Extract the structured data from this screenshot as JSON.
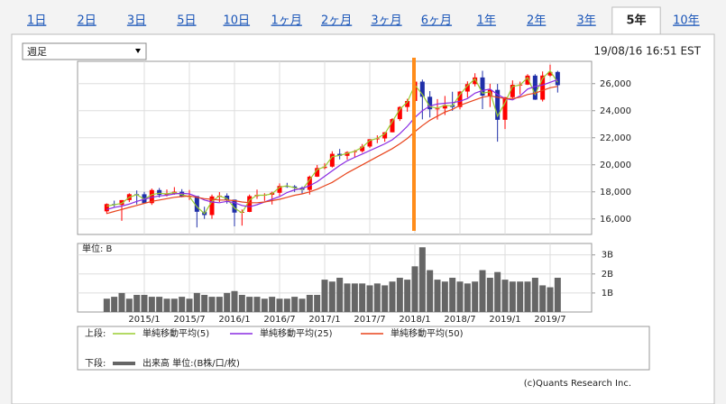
{
  "tabs": [
    "1日",
    "2日",
    "3日",
    "5日",
    "10日",
    "1ヶ月",
    "2ヶ月",
    "3ヶ月",
    "6ヶ月",
    "1年",
    "2年",
    "3年",
    "5年",
    "10年"
  ],
  "selected_tab": 12,
  "dropdown": "週足",
  "timestamp": "19/08/16 16:51 EST",
  "credit": "(c)Quants Research Inc.",
  "chart_data": [
    {
      "type": "candlestick",
      "legend_label": "上段:",
      "categories": [
        null,
        null,
        null,
        null,
        null,
        "2015/1",
        null,
        null,
        null,
        null,
        null,
        "2015/7",
        null,
        null,
        null,
        null,
        null,
        "2016/1",
        null,
        null,
        null,
        null,
        null,
        "2016/7",
        null,
        null,
        null,
        null,
        null,
        "2017/1",
        null,
        null,
        null,
        null,
        null,
        "2017/7",
        null,
        null,
        null,
        null,
        null,
        "2018/1",
        null,
        null,
        null,
        null,
        null,
        "2018/7",
        null,
        null,
        null,
        null,
        null,
        "2019/1",
        null,
        null,
        null,
        null,
        null,
        "2019/7",
        null
      ],
      "open": [
        16560,
        17098,
        17040,
        17390,
        17828,
        17823,
        17165,
        18133,
        17776,
        17841,
        18011,
        17620,
        17690,
        16528,
        16285,
        17663,
        17720,
        17425,
        16466,
        16517,
        17685,
        17774,
        17787,
        17930,
        18432,
        18401,
        18308,
        18142,
        19124,
        19763,
        19864,
        20812,
        20663,
        20940,
        21009,
        21350,
        21891,
        21948,
        22405,
        23377,
        24272,
        24719,
        26149,
        25029,
        24103,
        24163,
        24416,
        24271,
        25415,
        25965,
        26458,
        25116,
        25539,
        23327,
        24999,
        25916,
        25929,
        26593,
        24815,
        26600,
        26864
      ],
      "high": [
        17150,
        17350,
        17395,
        17895,
        18103,
        18000,
        18244,
        18288,
        18175,
        18351,
        18200,
        18138,
        17700,
        16900,
        17800,
        17980,
        17890,
        17425,
        16700,
        17800,
        18168,
        17900,
        18016,
        18622,
        18668,
        18500,
        18400,
        19200,
        19987,
        20125,
        21000,
        21170,
        21000,
        21100,
        21535,
        21900,
        22180,
        22420,
        23450,
        24330,
        24880,
        26620,
        26300,
        25450,
        24860,
        25090,
        25400,
        25460,
        26170,
        26770,
        26950,
        25990,
        25980,
        25000,
        26240,
        26150,
        26700,
        26700,
        26900,
        27400,
        26950
      ],
      "low": [
        16370,
        16900,
        15855,
        17250,
        17070,
        17135,
        17037,
        17585,
        17660,
        17790,
        17600,
        17400,
        15370,
        16000,
        16010,
        17250,
        17130,
        15450,
        15503,
        16500,
        17480,
        17330,
        17063,
        17700,
        18300,
        17990,
        17880,
        17800,
        19100,
        19670,
        19800,
        20400,
        20380,
        20550,
        20900,
        21250,
        21600,
        21700,
        22400,
        23240,
        23920,
        24700,
        23360,
        23500,
        23340,
        23680,
        23990,
        24100,
        24970,
        25800,
        24120,
        24270,
        21710,
        22640,
        24880,
        25200,
        25900,
        24800,
        24680,
        26500,
        25340
      ],
      "close": [
        17098,
        17043,
        17390,
        17828,
        17823,
        17165,
        18133,
        17776,
        17841,
        18011,
        17620,
        17690,
        16528,
        16285,
        17663,
        17720,
        17425,
        16466,
        16517,
        17685,
        17774,
        17787,
        17930,
        18432,
        18401,
        18308,
        18142,
        19124,
        19763,
        19864,
        20812,
        20663,
        20940,
        21009,
        21350,
        21891,
        21948,
        22405,
        23377,
        24272,
        24719,
        26149,
        25029,
        24103,
        24163,
        24416,
        24271,
        25415,
        25965,
        26458,
        25116,
        25539,
        23327,
        24999,
        25916,
        25929,
        26593,
        24815,
        26600,
        26864,
        25886
      ],
      "up_color": "#ff0000",
      "down_color": "#1f2fa8",
      "series": [
        {
          "name": "単純移動平均(5)",
          "color": "#9acd32",
          "values": [
            16950,
            17050,
            17150,
            17600,
            17800,
            17450,
            17800,
            17900,
            17850,
            17950,
            17800,
            17650,
            16900,
            16400,
            17300,
            17700,
            17500,
            16800,
            16450,
            17400,
            17750,
            17750,
            17850,
            18350,
            18450,
            18300,
            18150,
            18900,
            19650,
            19850,
            20600,
            20700,
            20850,
            21000,
            21300,
            21800,
            21950,
            22300,
            23200,
            24100,
            24650,
            25900,
            25200,
            24300,
            24200,
            24400,
            24350,
            25200,
            25850,
            26350,
            25300,
            25400,
            23600,
            24600,
            25800,
            25900,
            26450,
            25200,
            26400,
            26950,
            26100
          ]
        },
        {
          "name": "単純移動平均(25)",
          "color": "#8a2be2",
          "values": [
            16700,
            16850,
            16950,
            17100,
            17300,
            17450,
            17600,
            17700,
            17750,
            17850,
            17900,
            17850,
            17650,
            17400,
            17250,
            17200,
            17300,
            17200,
            17000,
            16900,
            17050,
            17250,
            17450,
            17650,
            17950,
            18150,
            18250,
            18450,
            18750,
            19150,
            19550,
            19950,
            20300,
            20550,
            20800,
            21050,
            21300,
            21550,
            21850,
            22300,
            22850,
            23500,
            24000,
            24350,
            24500,
            24550,
            24600,
            24700,
            24900,
            25300,
            25500,
            25600,
            25200,
            24900,
            24800,
            25100,
            25600,
            25800,
            25900,
            26100,
            26300
          ]
        },
        {
          "name": "単純移動平均(50)",
          "color": "#e8441c",
          "values": [
            16400,
            16550,
            16700,
            16850,
            17000,
            17150,
            17300,
            17400,
            17500,
            17600,
            17650,
            17700,
            17600,
            17500,
            17450,
            17400,
            17400,
            17350,
            17250,
            17200,
            17200,
            17250,
            17350,
            17450,
            17600,
            17750,
            17850,
            18000,
            18200,
            18450,
            18700,
            19050,
            19400,
            19700,
            20000,
            20300,
            20600,
            20900,
            21200,
            21550,
            21950,
            22450,
            22900,
            23300,
            23600,
            23900,
            24100,
            24400,
            24600,
            24800,
            25000,
            25100,
            25000,
            24900,
            24900,
            25000,
            25200,
            25300,
            25500,
            25700,
            25800
          ]
        }
      ],
      "ylim": [
        14850,
        27650
      ],
      "yticks": [
        {
          "value": 16000,
          "label": "16,000"
        },
        {
          "value": 18000,
          "label": "18,000"
        },
        {
          "value": 20000,
          "label": "20,000"
        },
        {
          "value": 22000,
          "label": "22,000"
        },
        {
          "value": 24000,
          "label": "24,000"
        },
        {
          "value": 26000,
          "label": "26,000"
        }
      ],
      "grid": true
    },
    {
      "type": "bar",
      "legend_label": "下段:",
      "unit_label": "単位: B",
      "name": "出来高 単位:(B株/口/枚)",
      "color": "#666666",
      "values": [
        0.7,
        0.8,
        1.0,
        0.7,
        0.9,
        0.9,
        0.8,
        0.8,
        0.7,
        0.7,
        0.8,
        0.7,
        1.0,
        0.9,
        0.8,
        0.8,
        1.0,
        1.1,
        0.9,
        0.8,
        0.8,
        0.7,
        0.8,
        0.7,
        0.7,
        0.8,
        0.7,
        0.9,
        0.9,
        1.7,
        1.6,
        1.8,
        1.5,
        1.5,
        1.5,
        1.4,
        1.5,
        1.4,
        1.6,
        1.8,
        1.7,
        2.4,
        3.4,
        2.2,
        1.7,
        1.6,
        1.8,
        1.6,
        1.5,
        1.6,
        2.2,
        1.8,
        2.1,
        1.7,
        1.6,
        1.6,
        1.6,
        1.8,
        1.4,
        1.3,
        1.8
      ],
      "ylim": [
        0,
        3.6
      ],
      "yticks": [
        {
          "value": 1,
          "label": "1B"
        },
        {
          "value": 2,
          "label": "2B"
        },
        {
          "value": 3,
          "label": "3B"
        }
      ],
      "grid": true
    }
  ]
}
